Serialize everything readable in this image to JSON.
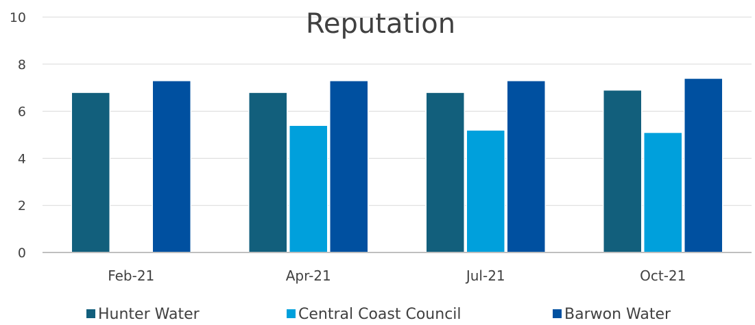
{
  "chart_data": {
    "type": "bar",
    "title": "Reputation",
    "xlabel": "",
    "ylabel": "",
    "categories": [
      "Feb-21",
      "Apr-21",
      "Jul-21",
      "Oct-21"
    ],
    "series": [
      {
        "name": "Hunter Water",
        "values": [
          6.8,
          6.8,
          6.8,
          6.9
        ],
        "color": "#125f7c"
      },
      {
        "name": "Central Coast Council",
        "values": [
          null,
          5.4,
          5.2,
          5.1
        ],
        "color": "#00a0dc"
      },
      {
        "name": "Barwon Water",
        "values": [
          7.3,
          7.3,
          7.3,
          7.4
        ],
        "color": "#0050a0"
      }
    ],
    "ylim": [
      0,
      10
    ],
    "yticks": [
      0,
      2,
      4,
      6,
      8,
      10
    ],
    "grid": true,
    "legend_position": "bottom"
  }
}
